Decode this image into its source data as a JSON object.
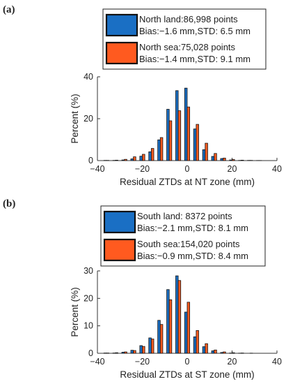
{
  "colors": {
    "land": "#1a6fc4",
    "sea": "#ff5a1f",
    "edge": "#111111"
  },
  "chart_data": [
    {
      "type": "bar",
      "panel_label": "(a)",
      "title": "",
      "xlabel": "Residual ZTDs at NT zone (mm)",
      "ylabel": "Percent (%)",
      "xlim": [
        -40,
        40
      ],
      "ylim": [
        0,
        40
      ],
      "xticks": [
        -40,
        -20,
        0,
        20,
        40
      ],
      "yticks": [
        0,
        20,
        40
      ],
      "grid": false,
      "legend_position": "top",
      "legend_lines": [
        [
          "North land:86,998 points",
          "Bias:−1.6 mm,STD: 6.5 mm"
        ],
        [
          "North sea:75,028 points",
          "Bias:−1.4 mm,STD: 9.1 mm"
        ]
      ],
      "x": [
        -36,
        -32,
        -28,
        -24,
        -20,
        -16,
        -12,
        -8,
        -4,
        0,
        4,
        8,
        12,
        16,
        20,
        24,
        28,
        32,
        36
      ],
      "series": [
        {
          "values": [
            0.1,
            0.1,
            0.3,
            0.8,
            2.1,
            4.2,
            9.9,
            24.5,
            33.4,
            34.6,
            15.1,
            5.2,
            2.0,
            1.0,
            0.3,
            0.1,
            0.1,
            0.05,
            0.0
          ]
        },
        {
          "values": [
            0.1,
            0.2,
            0.6,
            1.8,
            3.0,
            5.8,
            11.0,
            19.0,
            23.8,
            25.6,
            17.3,
            8.3,
            3.4,
            1.2,
            0.5,
            0.2,
            0.1,
            0.05,
            0.0
          ]
        }
      ]
    },
    {
      "type": "bar",
      "panel_label": "(b)",
      "title": "",
      "xlabel": "Residual ZTDs at ST zone (mm)",
      "ylabel": "Percent (%)",
      "xlim": [
        -40,
        40
      ],
      "ylim": [
        0,
        30
      ],
      "xticks": [
        -40,
        -20,
        0,
        20,
        40
      ],
      "yticks": [
        0,
        10,
        20,
        30
      ],
      "grid": false,
      "legend_position": "top",
      "legend_lines": [
        [
          "South land: 8372 points",
          "Bias:−2.1 mm,STD: 8.1 mm"
        ],
        [
          "South sea:154,020 points",
          "Bias:−0.9 mm,STD: 8.4 mm"
        ]
      ],
      "x": [
        -36,
        -32,
        -28,
        -24,
        -20,
        -16,
        -12,
        -8,
        -4,
        0,
        4,
        8,
        12,
        16,
        20,
        24,
        28,
        32,
        36
      ],
      "series": [
        {
          "values": [
            0.1,
            0.1,
            0.4,
            1.1,
            2.8,
            5.6,
            12.0,
            23.2,
            28.2,
            15.0,
            6.0,
            2.4,
            0.9,
            0.3,
            0.1,
            0.05,
            0.0,
            0.0,
            0.0
          ]
        },
        {
          "values": [
            0.1,
            0.2,
            0.5,
            1.0,
            2.5,
            5.2,
            10.5,
            19.5,
            26.5,
            18.6,
            8.3,
            3.5,
            1.2,
            0.5,
            0.2,
            0.1,
            0.05,
            0.0,
            0.0
          ]
        }
      ]
    }
  ]
}
